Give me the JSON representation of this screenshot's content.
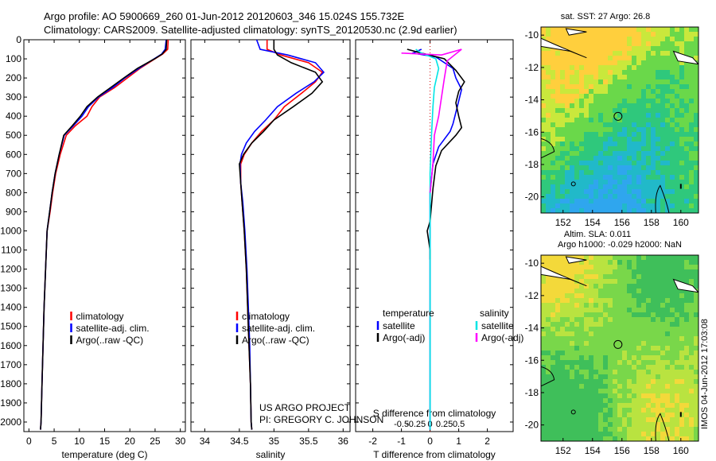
{
  "titles": {
    "line1": "Argo profile: AO 5900669_260 01-Jun-2012 20120603_346 15.024S 155.732E",
    "line2": "Climatology: CARS2009. Satellite-adjusted climatology: synTS_20120530.nc (2.9d earlier)"
  },
  "sidebar_text": "IMOS 04-Jun-2012 17:03:08",
  "project_lines": [
    "US ARGO PROJECT",
    "PI: GREGORY C. JOHNSON"
  ],
  "colors": {
    "climatology": "#ff0000",
    "satellite": "#0000ff",
    "argo": "#000000",
    "satellite_salinity": "#00e5e5",
    "argo_salinity": "#ff00ff"
  },
  "chart_data": [
    {
      "type": "line",
      "panel": "temperature",
      "xlabel": "temperature (deg C)",
      "xlim": [
        -1,
        31
      ],
      "ylim": [
        2050,
        0
      ],
      "xticks": [
        0,
        5,
        10,
        15,
        20,
        25,
        30
      ],
      "yticks": [
        0,
        100,
        200,
        300,
        400,
        500,
        600,
        700,
        800,
        900,
        1000,
        1100,
        1200,
        1300,
        1400,
        1500,
        1600,
        1700,
        1800,
        1900,
        2000
      ],
      "legend_position": "lower-center",
      "series": [
        {
          "name": "climatology",
          "color_key": "climatology",
          "x": [
            27.6,
            27.5,
            26.5,
            25,
            22,
            19.5,
            17,
            14,
            12.5,
            11.5,
            9.2,
            7.4,
            6.2,
            5.3,
            4.7,
            4.2,
            3.6,
            3.3,
            3.0,
            2.8,
            2.6,
            2.4,
            2.3
          ],
          "y": [
            0,
            50,
            75,
            100,
            150,
            200,
            250,
            300,
            350,
            400,
            450,
            500,
            600,
            700,
            800,
            900,
            1000,
            1200,
            1400,
            1600,
            1800,
            2000,
            2040
          ]
        },
        {
          "name": "satellite-adj. clim.",
          "color_key": "satellite",
          "x": [
            27.2,
            27.0,
            26.3,
            24.8,
            21.8,
            19.0,
            16.6,
            13.8,
            11.8,
            10.5,
            8.8,
            7.0,
            6.0,
            5.2,
            4.6,
            4.1,
            3.6,
            3.3,
            3.0,
            2.8,
            2.6,
            2.4,
            2.3
          ],
          "y": [
            0,
            50,
            75,
            100,
            150,
            200,
            250,
            300,
            350,
            400,
            450,
            500,
            600,
            700,
            800,
            900,
            1000,
            1200,
            1400,
            1600,
            1800,
            2000,
            2040
          ]
        },
        {
          "name": "Argo(..raw -QC)",
          "color_key": "argo",
          "x": [
            27.3,
            27.2,
            26.4,
            24.9,
            21.5,
            18.8,
            16.2,
            13.6,
            11.5,
            10.2,
            8.6,
            6.9,
            6.0,
            5.2,
            4.6,
            4.1,
            3.6,
            3.3,
            3.0,
            2.8,
            2.6,
            2.4,
            2.3
          ],
          "y": [
            0,
            50,
            75,
            100,
            150,
            200,
            250,
            300,
            350,
            400,
            450,
            500,
            600,
            700,
            800,
            900,
            1000,
            1200,
            1400,
            1600,
            1800,
            2000,
            2040
          ]
        }
      ]
    },
    {
      "type": "line",
      "panel": "salinity",
      "xlabel": "salinity",
      "xlim": [
        33.8,
        36.1
      ],
      "ylim": [
        2050,
        0
      ],
      "xticks": [
        34,
        34.5,
        35,
        35.5,
        36
      ],
      "xtick_labels": [
        "34",
        "34.5",
        "35",
        "35.5",
        "36"
      ],
      "legend_position": "lower-center",
      "series": [
        {
          "name": "climatology",
          "color_key": "climatology",
          "x": [
            34.9,
            34.9,
            35.1,
            35.5,
            35.7,
            35.6,
            35.4,
            35.15,
            35.0,
            34.82,
            34.68,
            34.57,
            34.52,
            34.52,
            34.54,
            34.57,
            34.6,
            34.62,
            34.64,
            34.66,
            34.67,
            34.68
          ],
          "y": [
            0,
            50,
            80,
            120,
            170,
            220,
            280,
            350,
            420,
            480,
            540,
            600,
            650,
            750,
            850,
            1000,
            1200,
            1400,
            1600,
            1800,
            2000,
            2040
          ]
        },
        {
          "name": "satellite-adj. clim.",
          "color_key": "satellite",
          "x": [
            34.75,
            34.8,
            35.2,
            35.6,
            35.72,
            35.58,
            35.32,
            35.05,
            34.88,
            34.72,
            34.6,
            34.53,
            34.51,
            34.52,
            34.55,
            34.58,
            34.61,
            34.63,
            34.65,
            34.66,
            34.67,
            34.68
          ],
          "y": [
            0,
            50,
            80,
            120,
            170,
            220,
            280,
            350,
            420,
            480,
            540,
            600,
            650,
            750,
            850,
            1000,
            1200,
            1400,
            1600,
            1800,
            2000,
            2040
          ]
        },
        {
          "name": "Argo(..raw -QC)",
          "color_key": "argo",
          "x": [
            35.0,
            35.0,
            35.05,
            35.25,
            35.6,
            35.7,
            35.55,
            35.28,
            35.0,
            34.85,
            34.68,
            34.56,
            34.5,
            34.52,
            34.54,
            34.57,
            34.6,
            34.62,
            34.64,
            34.66,
            34.67,
            34.68
          ],
          "y": [
            0,
            50,
            80,
            120,
            170,
            220,
            280,
            350,
            420,
            480,
            540,
            600,
            650,
            750,
            850,
            1000,
            1200,
            1400,
            1600,
            1800,
            2000,
            2040
          ]
        }
      ]
    },
    {
      "type": "line",
      "panel": "difference",
      "xlabel": "T difference from climatology",
      "xlabel_secondary": "S difference from climatology",
      "xlim": [
        -2.6,
        2.9
      ],
      "ylim": [
        2050,
        0
      ],
      "xticks": [
        -2,
        -1,
        0,
        1,
        2
      ],
      "xticks_secondary": [
        -0.5,
        -0.25,
        0,
        0.25,
        0.5
      ],
      "legend_position": "lower-center",
      "legend_headers": [
        "temperature",
        "salinity"
      ],
      "series": [
        {
          "name": "temperature satellite",
          "color_key": "satellite",
          "x": [
            -0.3,
            -0.6,
            0.2,
            0.8,
            0.9,
            1.1,
            1.0,
            0.9,
            0.8,
            0.7,
            0.3,
            0.1,
            0.0,
            0.0,
            0.0,
            0.0,
            0.0
          ],
          "y": [
            50,
            70,
            90,
            150,
            200,
            260,
            320,
            380,
            440,
            480,
            560,
            650,
            800,
            1000,
            1400,
            1800,
            2040
          ]
        },
        {
          "name": "temperature Argo(-adj)",
          "color_key": "argo",
          "x": [
            -0.8,
            -0.3,
            0.5,
            0.9,
            1.2,
            1.0,
            0.9,
            1.0,
            1.1,
            0.9,
            0.4,
            0.2,
            0.1,
            0.0,
            -0.1,
            0.0,
            0.0
          ],
          "y": [
            50,
            70,
            100,
            160,
            220,
            270,
            330,
            400,
            460,
            500,
            580,
            660,
            780,
            950,
            1000,
            1100,
            1150
          ]
        },
        {
          "name": "salinity satellite",
          "color_key": "satellite_salinity",
          "x": [
            -0.5,
            -0.3,
            0.2,
            0.3,
            0.15,
            0.1,
            0.05,
            0.0,
            0.0,
            0.0
          ],
          "y": [
            50,
            70,
            100,
            150,
            250,
            350,
            500,
            700,
            1200,
            2040
          ]
        },
        {
          "name": "salinity Argo(-adj)",
          "color_key": "argo_salinity",
          "x": [
            -1.0,
            0.4,
            1.1,
            0.6,
            0.5,
            0.4,
            0.3,
            0.15,
            0.1,
            0.0
          ],
          "y": [
            70,
            80,
            50,
            110,
            200,
            300,
            400,
            500,
            650,
            800
          ]
        }
      ]
    },
    {
      "type": "heatmap",
      "panel": "map-sst",
      "title": "sat. SST: 27 Argo: 26.8",
      "xlim": [
        150.5,
        161.2
      ],
      "ylim": [
        -21,
        -9.5
      ],
      "xticks": [
        152,
        154,
        156,
        158,
        160
      ],
      "yticks": [
        -10,
        -12,
        -14,
        -16,
        -18,
        -20
      ],
      "profile_location": [
        155.732,
        -15.024
      ]
    },
    {
      "type": "heatmap",
      "panel": "map-sla",
      "title_lines": [
        "Altim. SLA: 0.011",
        "Argo h1000: -0.029 h2000: NaN"
      ],
      "xlim": [
        150.5,
        161.2
      ],
      "ylim": [
        -21,
        -9.5
      ],
      "xticks": [
        152,
        154,
        156,
        158,
        160
      ],
      "yticks": [
        -10,
        -12,
        -14,
        -16,
        -18,
        -20
      ],
      "profile_location": [
        155.732,
        -15.024
      ]
    }
  ]
}
